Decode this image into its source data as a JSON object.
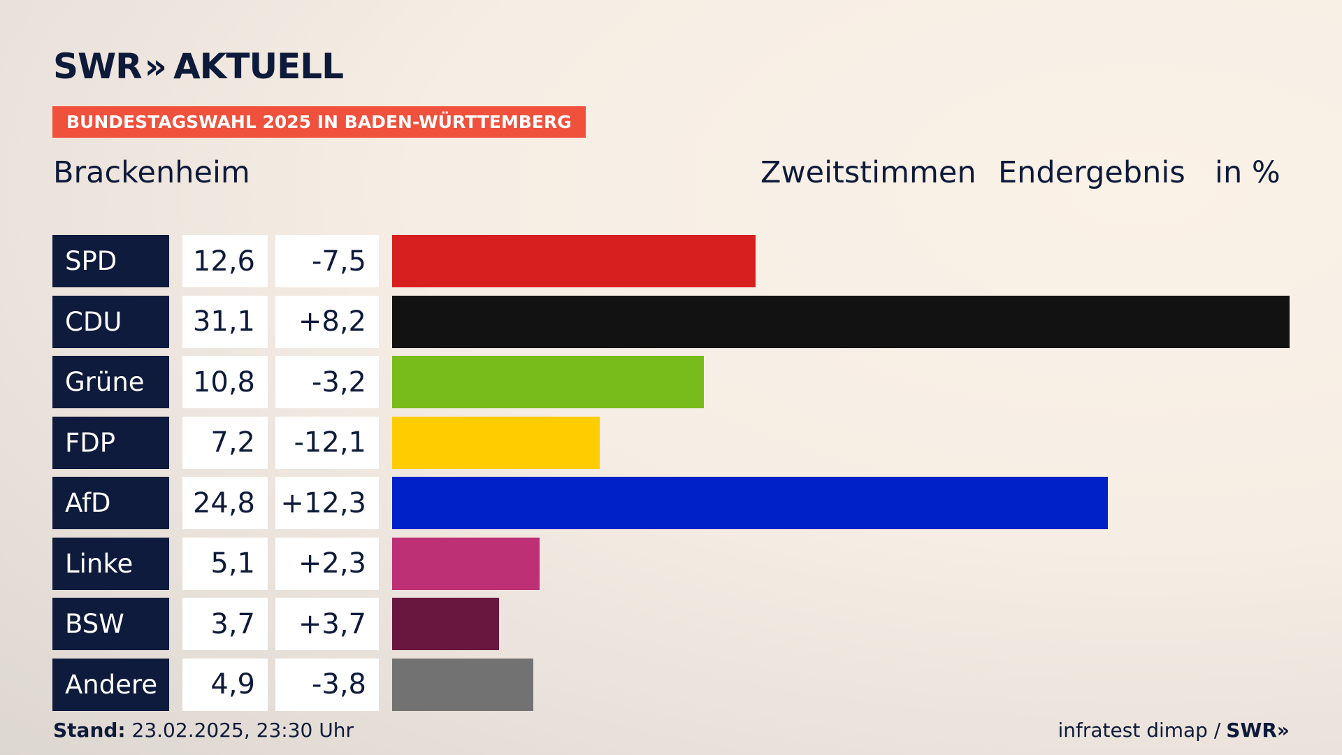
{
  "brand": {
    "logo_left": "SWR",
    "logo_chevrons": "»",
    "logo_right": "AKTUELL"
  },
  "banner": "BUNDESTAGSWAHL 2025 IN BADEN-WÜRTTEMBERG",
  "place": "Brackenheim",
  "headers": {
    "h1": "Zweitstimmen",
    "h2": "Endergebnis",
    "h3": "in %"
  },
  "footer": {
    "stand_label": "Stand:",
    "stand_value": "23.02.2025, 23:30 Uhr",
    "source": "infratest dimap /",
    "source_brand": "SWR»"
  },
  "chart_data": {
    "type": "bar",
    "categories": [
      "SPD",
      "CDU",
      "Grüne",
      "FDP",
      "AfD",
      "Linke",
      "BSW",
      "Andere"
    ],
    "values": [
      12.6,
      31.1,
      10.8,
      7.2,
      24.8,
      5.1,
      3.7,
      4.9
    ],
    "value_labels": [
      "12,6",
      "31,1",
      "10,8",
      "7,2",
      "24,8",
      "5,1",
      "3,7",
      "4,9"
    ],
    "change_labels": [
      "-7,5",
      "+8,2",
      "-3,2",
      "-12,1",
      "+12,3",
      "+2,3",
      "+3,7",
      "-3,8"
    ],
    "colors": [
      "#d71f1f",
      "#121212",
      "#78bc1b",
      "#ffcc00",
      "#0021c8",
      "#bd3075",
      "#6a173f",
      "#727272"
    ],
    "orientation": "horizontal",
    "xlim": [
      0,
      31.1
    ]
  }
}
